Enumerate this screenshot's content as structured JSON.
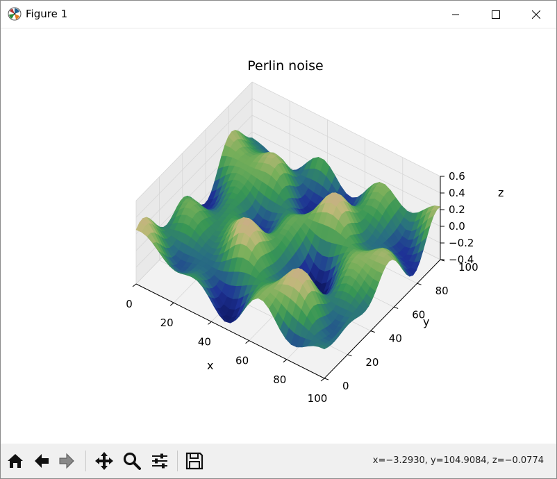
{
  "window": {
    "title": "Figure 1"
  },
  "status": {
    "coords": "x=−3.2930, y=104.9084, z=−0.0774"
  },
  "toolbar": {
    "buttons": [
      "home-icon",
      "back-arrow-icon",
      "forward-arrow-icon",
      "pan-icon",
      "zoom-icon",
      "configure-subplots-icon",
      "save-icon"
    ]
  },
  "colors": {
    "surface_low": "#14206e",
    "surface_mid": "#3c9a4a",
    "surface_high": "#e8c8b8"
  },
  "chart_data": {
    "type": "surface",
    "title": "Perlin noise",
    "xlabel": "x",
    "ylabel": "y",
    "zlabel": "z",
    "xlim": [
      0,
      100
    ],
    "ylim": [
      0,
      100
    ],
    "zlim": [
      -0.4,
      0.6
    ],
    "xticks": [
      "0",
      "20",
      "40",
      "60",
      "80",
      "100"
    ],
    "yticks": [
      "0",
      "20",
      "40",
      "60",
      "80",
      "100"
    ],
    "zticks": [
      "−0.4",
      "−0.2",
      "0.0",
      "0.2",
      "0.4",
      "0.6"
    ],
    "colormap": "gist_earth",
    "grid": true
  }
}
